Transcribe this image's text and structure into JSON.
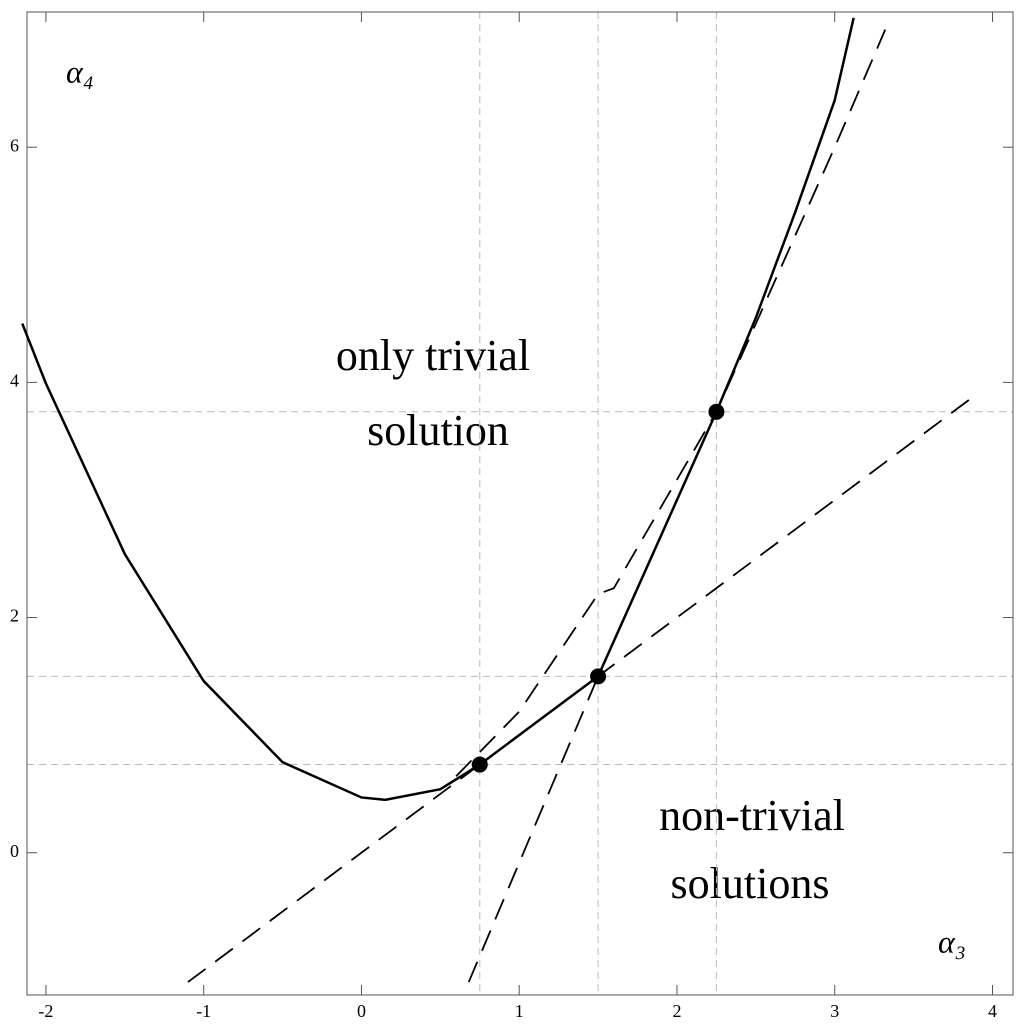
{
  "chart_data": {
    "type": "line",
    "x_label": "α₃",
    "y_label": "α₄",
    "xlim": [
      -2.12,
      4.13
    ],
    "ylim": [
      -1.21,
      7.15
    ],
    "xticks": [
      -2,
      -1,
      0,
      1,
      2,
      3,
      4
    ],
    "yticks": [
      0,
      2,
      4,
      6
    ],
    "reference_x": [
      0.75,
      1.5,
      2.25
    ],
    "reference_y": [
      0.75,
      1.5,
      3.75
    ],
    "series": [
      {
        "style": "solid",
        "color": "#000000",
        "x": [
          -2.15,
          -2,
          -1.5,
          -1,
          -0.5,
          0,
          0.15,
          0.5,
          0.75,
          1.5,
          2.25,
          2.5,
          2.75,
          3,
          3.12
        ],
        "y": [
          4.5,
          3.99,
          2.54,
          1.46,
          0.77,
          0.47,
          0.45,
          0.54,
          0.75,
          1.5,
          3.75,
          4.55,
          5.45,
          6.4,
          7.1
        ]
      },
      {
        "style": "dashed",
        "color": "#000000",
        "x": [
          -1.1,
          3.9
        ],
        "y": [
          -1.1,
          3.9
        ]
      },
      {
        "style": "dashed",
        "color": "#000000",
        "x": [
          0.68,
          1.5
        ],
        "y": [
          -1.1,
          1.5
        ]
      },
      {
        "style": "dashed",
        "color": "#000000",
        "x": [
          0.6,
          1.0,
          1.5,
          1.6,
          2.25,
          2.5,
          3.0,
          3.32
        ],
        "y": [
          0.65,
          1.2,
          2.2,
          2.25,
          3.75,
          4.5,
          6.0,
          7.0
        ]
      }
    ],
    "points": {
      "x": [
        0.75,
        1.5,
        2.25
      ],
      "y": [
        0.75,
        1.5,
        3.75
      ]
    },
    "annotations": [
      {
        "lines": [
          "only trivial",
          "solution"
        ]
      },
      {
        "lines": [
          "non-trivial",
          "solutions"
        ]
      }
    ]
  }
}
